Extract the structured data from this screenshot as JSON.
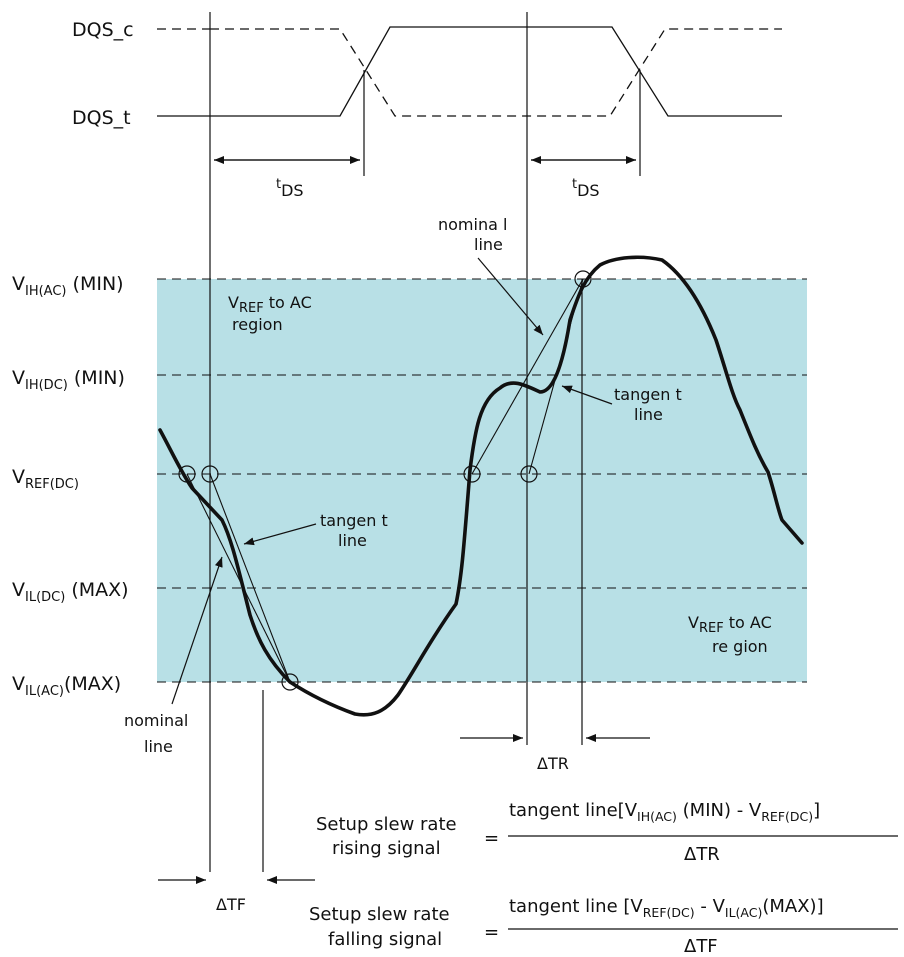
{
  "signals": {
    "dqs_c": "DQS_c",
    "dqs_t": "DQS_t"
  },
  "timing": {
    "tds_super": "t",
    "tds_main": "DS"
  },
  "levels": {
    "vih_ac": {
      "main": "V",
      "sub": "IH(AC)",
      "suffix": " (MIN)"
    },
    "vih_dc": {
      "main": "V",
      "sub": "IH(DC)",
      "suffix": " (MIN)"
    },
    "vref_dc": {
      "main": "V",
      "sub": "REF(DC)",
      "suffix": ""
    },
    "vil_dc": {
      "main": "V",
      "sub": "IL(DC)",
      "suffix": " (MAX)"
    },
    "vil_ac": {
      "main": "V",
      "sub": "IL(AC)",
      "suffix": "(MAX)"
    }
  },
  "regions": {
    "upper": {
      "v": "V",
      "sub": "REF",
      "rest": " to AC",
      "line2": "region"
    },
    "lower": {
      "v": "V",
      "sub": "REF",
      "rest": " to AC",
      "line2": "re gion"
    }
  },
  "annotations": {
    "nominal_top": [
      "nomina l",
      "line"
    ],
    "tangent_right": [
      "tangen t",
      "line"
    ],
    "tangent_left": [
      "tangen t",
      "line"
    ],
    "nominal_bottom": [
      "nominal",
      "line"
    ],
    "delta_tr": "ΔTR",
    "delta_tf": "ΔTF"
  },
  "formulas": {
    "rising": {
      "label1": "Setup slew rate",
      "label2": "rising signal",
      "eq": "=",
      "num_prefix": "tangent line[V",
      "num_sub1": "IH(AC)",
      "num_mid": " (MIN) - V",
      "num_sub2": "REF(DC)",
      "num_suffix": "]",
      "den": "ΔTR"
    },
    "falling": {
      "label1": "Setup slew rate",
      "label2": "falling signal",
      "eq": "=",
      "num_prefix": "tangent line [V",
      "num_sub1": "REF(DC)",
      "num_mid": " - V",
      "num_sub2": "IL(AC)",
      "num_suffix": "(MAX)]",
      "den": "ΔTF"
    }
  },
  "colors": {
    "region": "#b8e0e6",
    "ink": "#111111"
  }
}
